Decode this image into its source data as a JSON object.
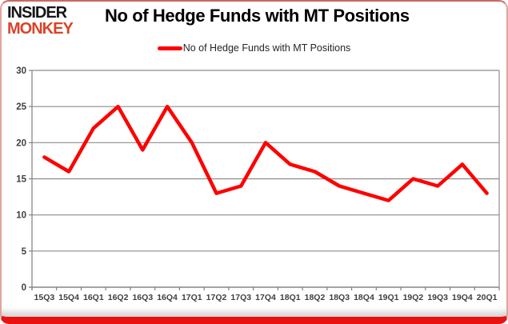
{
  "page": {
    "logo": {
      "line1": "INSIDER",
      "line2": "MONKEY"
    },
    "title": "No of Hedge Funds with MT Positions",
    "legend": {
      "label": "No of Hedge Funds with MT Positions",
      "swatch_color": "#ff0000"
    }
  },
  "colors": {
    "series_line": "#ff0000",
    "gridline": "#8c8c8c",
    "axis_line": "#808080",
    "axis_text": "#3f3f3f",
    "title_text": "#000000",
    "logo_black": "#161616",
    "logo_red": "#d8442a",
    "frame_red": "#ea1111"
  },
  "chart_data": {
    "type": "line",
    "title": "No of Hedge Funds with MT Positions",
    "categories": [
      "15Q3",
      "15Q4",
      "16Q1",
      "16Q2",
      "16Q3",
      "16Q4",
      "17Q1",
      "17Q2",
      "17Q3",
      "17Q4",
      "18Q1",
      "18Q2",
      "18Q3",
      "18Q4",
      "19Q1",
      "19Q2",
      "19Q3",
      "19Q4",
      "20Q1"
    ],
    "series": [
      {
        "name": "No of Hedge Funds with MT Positions",
        "values": [
          18,
          16,
          22,
          25,
          19,
          25,
          20,
          13,
          14,
          20,
          17,
          16,
          14,
          13,
          12,
          15,
          14,
          17,
          13
        ]
      }
    ],
    "xlabel": "",
    "ylabel": "",
    "ylim": [
      0,
      30
    ],
    "ytick_step": 5,
    "grid": true,
    "legend_position": "top-center"
  }
}
